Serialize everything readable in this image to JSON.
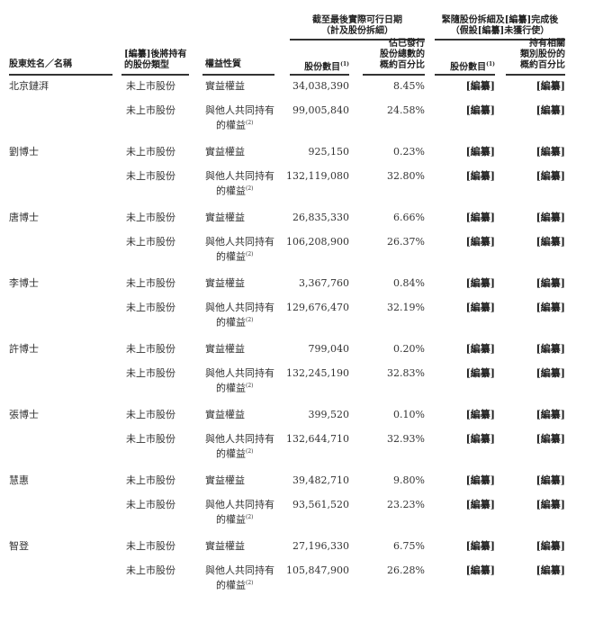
{
  "header": {
    "group1": [
      "截至最後實際可行日期",
      "（計及股份拆細）"
    ],
    "group2": [
      "緊隨股份拆細及[編纂]完成後",
      "（假設[編纂]未獲行使）"
    ],
    "col_name": "股東姓名／名稱",
    "col_type": [
      "[編纂]後將持有",
      "的股份類型"
    ],
    "col_nature": "權益性質",
    "col_shares": "股份數目",
    "col_shares_note": "(1)",
    "col_pct": [
      "佔已發行",
      "股份總數的",
      "概約百分比"
    ],
    "col_post_shares": "股份數目",
    "col_post_shares_note": "(1)",
    "col_post_pct": [
      "持有相關",
      "類別股份的",
      "概約百分比"
    ]
  },
  "rows": [
    {
      "name": "北京鏈湃",
      "entries": [
        {
          "type": "未上市股份",
          "nature": [
            "實益權益"
          ],
          "shares": "34,038,390",
          "pct": "8.45%",
          "post_shares": "[編纂]",
          "post_pct": "[編纂]"
        },
        {
          "type": "未上市股份",
          "nature": [
            "與他人共同持有",
            "的權益"
          ],
          "note": "(2)",
          "shares": "99,005,840",
          "pct": "24.58%",
          "post_shares": "[編纂]",
          "post_pct": "[編纂]"
        }
      ]
    },
    {
      "name": "劉博士",
      "entries": [
        {
          "type": "未上市股份",
          "nature": [
            "實益權益"
          ],
          "shares": "925,150",
          "pct": "0.23%",
          "post_shares": "[編纂]",
          "post_pct": "[編纂]"
        },
        {
          "type": "未上市股份",
          "nature": [
            "與他人共同持有",
            "的權益"
          ],
          "note": "(2)",
          "shares": "132,119,080",
          "pct": "32.80%",
          "post_shares": "[編纂]",
          "post_pct": "[編纂]"
        }
      ]
    },
    {
      "name": "唐博士",
      "entries": [
        {
          "type": "未上市股份",
          "nature": [
            "實益權益"
          ],
          "shares": "26,835,330",
          "pct": "6.66%",
          "post_shares": "[編纂]",
          "post_pct": "[編纂]"
        },
        {
          "type": "未上市股份",
          "nature": [
            "與他人共同持有",
            "的權益"
          ],
          "note": "(2)",
          "shares": "106,208,900",
          "pct": "26.37%",
          "post_shares": "[編纂]",
          "post_pct": "[編纂]"
        }
      ]
    },
    {
      "name": "李博士",
      "entries": [
        {
          "type": "未上市股份",
          "nature": [
            "實益權益"
          ],
          "shares": "3,367,760",
          "pct": "0.84%",
          "post_shares": "[編纂]",
          "post_pct": "[編纂]"
        },
        {
          "type": "未上市股份",
          "nature": [
            "與他人共同持有",
            "的權益"
          ],
          "note": "(2)",
          "shares": "129,676,470",
          "pct": "32.19%",
          "post_shares": "[編纂]",
          "post_pct": "[編纂]"
        }
      ]
    },
    {
      "name": "許博士",
      "entries": [
        {
          "type": "未上市股份",
          "nature": [
            "實益權益"
          ],
          "shares": "799,040",
          "pct": "0.20%",
          "post_shares": "[編纂]",
          "post_pct": "[編纂]"
        },
        {
          "type": "未上市股份",
          "nature": [
            "與他人共同持有",
            "的權益"
          ],
          "note": "(2)",
          "shares": "132,245,190",
          "pct": "32.83%",
          "post_shares": "[編纂]",
          "post_pct": "[編纂]"
        }
      ]
    },
    {
      "name": "張博士",
      "entries": [
        {
          "type": "未上市股份",
          "nature": [
            "實益權益"
          ],
          "shares": "399,520",
          "pct": "0.10%",
          "post_shares": "[編纂]",
          "post_pct": "[編纂]"
        },
        {
          "type": "未上市股份",
          "nature": [
            "與他人共同持有",
            "的權益"
          ],
          "note": "(2)",
          "shares": "132,644,710",
          "pct": "32.93%",
          "post_shares": "[編纂]",
          "post_pct": "[編纂]"
        }
      ]
    },
    {
      "name": "慧惠",
      "entries": [
        {
          "type": "未上市股份",
          "nature": [
            "實益權益"
          ],
          "shares": "39,482,710",
          "pct": "9.80%",
          "post_shares": "[編纂]",
          "post_pct": "[編纂]"
        },
        {
          "type": "未上市股份",
          "nature": [
            "與他人共同持有",
            "的權益"
          ],
          "note": "(2)",
          "shares": "93,561,520",
          "pct": "23.23%",
          "post_shares": "[編纂]",
          "post_pct": "[編纂]"
        }
      ]
    },
    {
      "name": "智登",
      "entries": [
        {
          "type": "未上市股份",
          "nature": [
            "實益權益"
          ],
          "shares": "27,196,330",
          "pct": "6.75%",
          "post_shares": "[編纂]",
          "post_pct": "[編纂]"
        },
        {
          "type": "未上市股份",
          "nature": [
            "與他人共同持有",
            "的權益"
          ],
          "note": "(2)",
          "shares": "105,847,900",
          "pct": "26.28%",
          "post_shares": "[編纂]",
          "post_pct": "[編纂]"
        }
      ]
    }
  ]
}
